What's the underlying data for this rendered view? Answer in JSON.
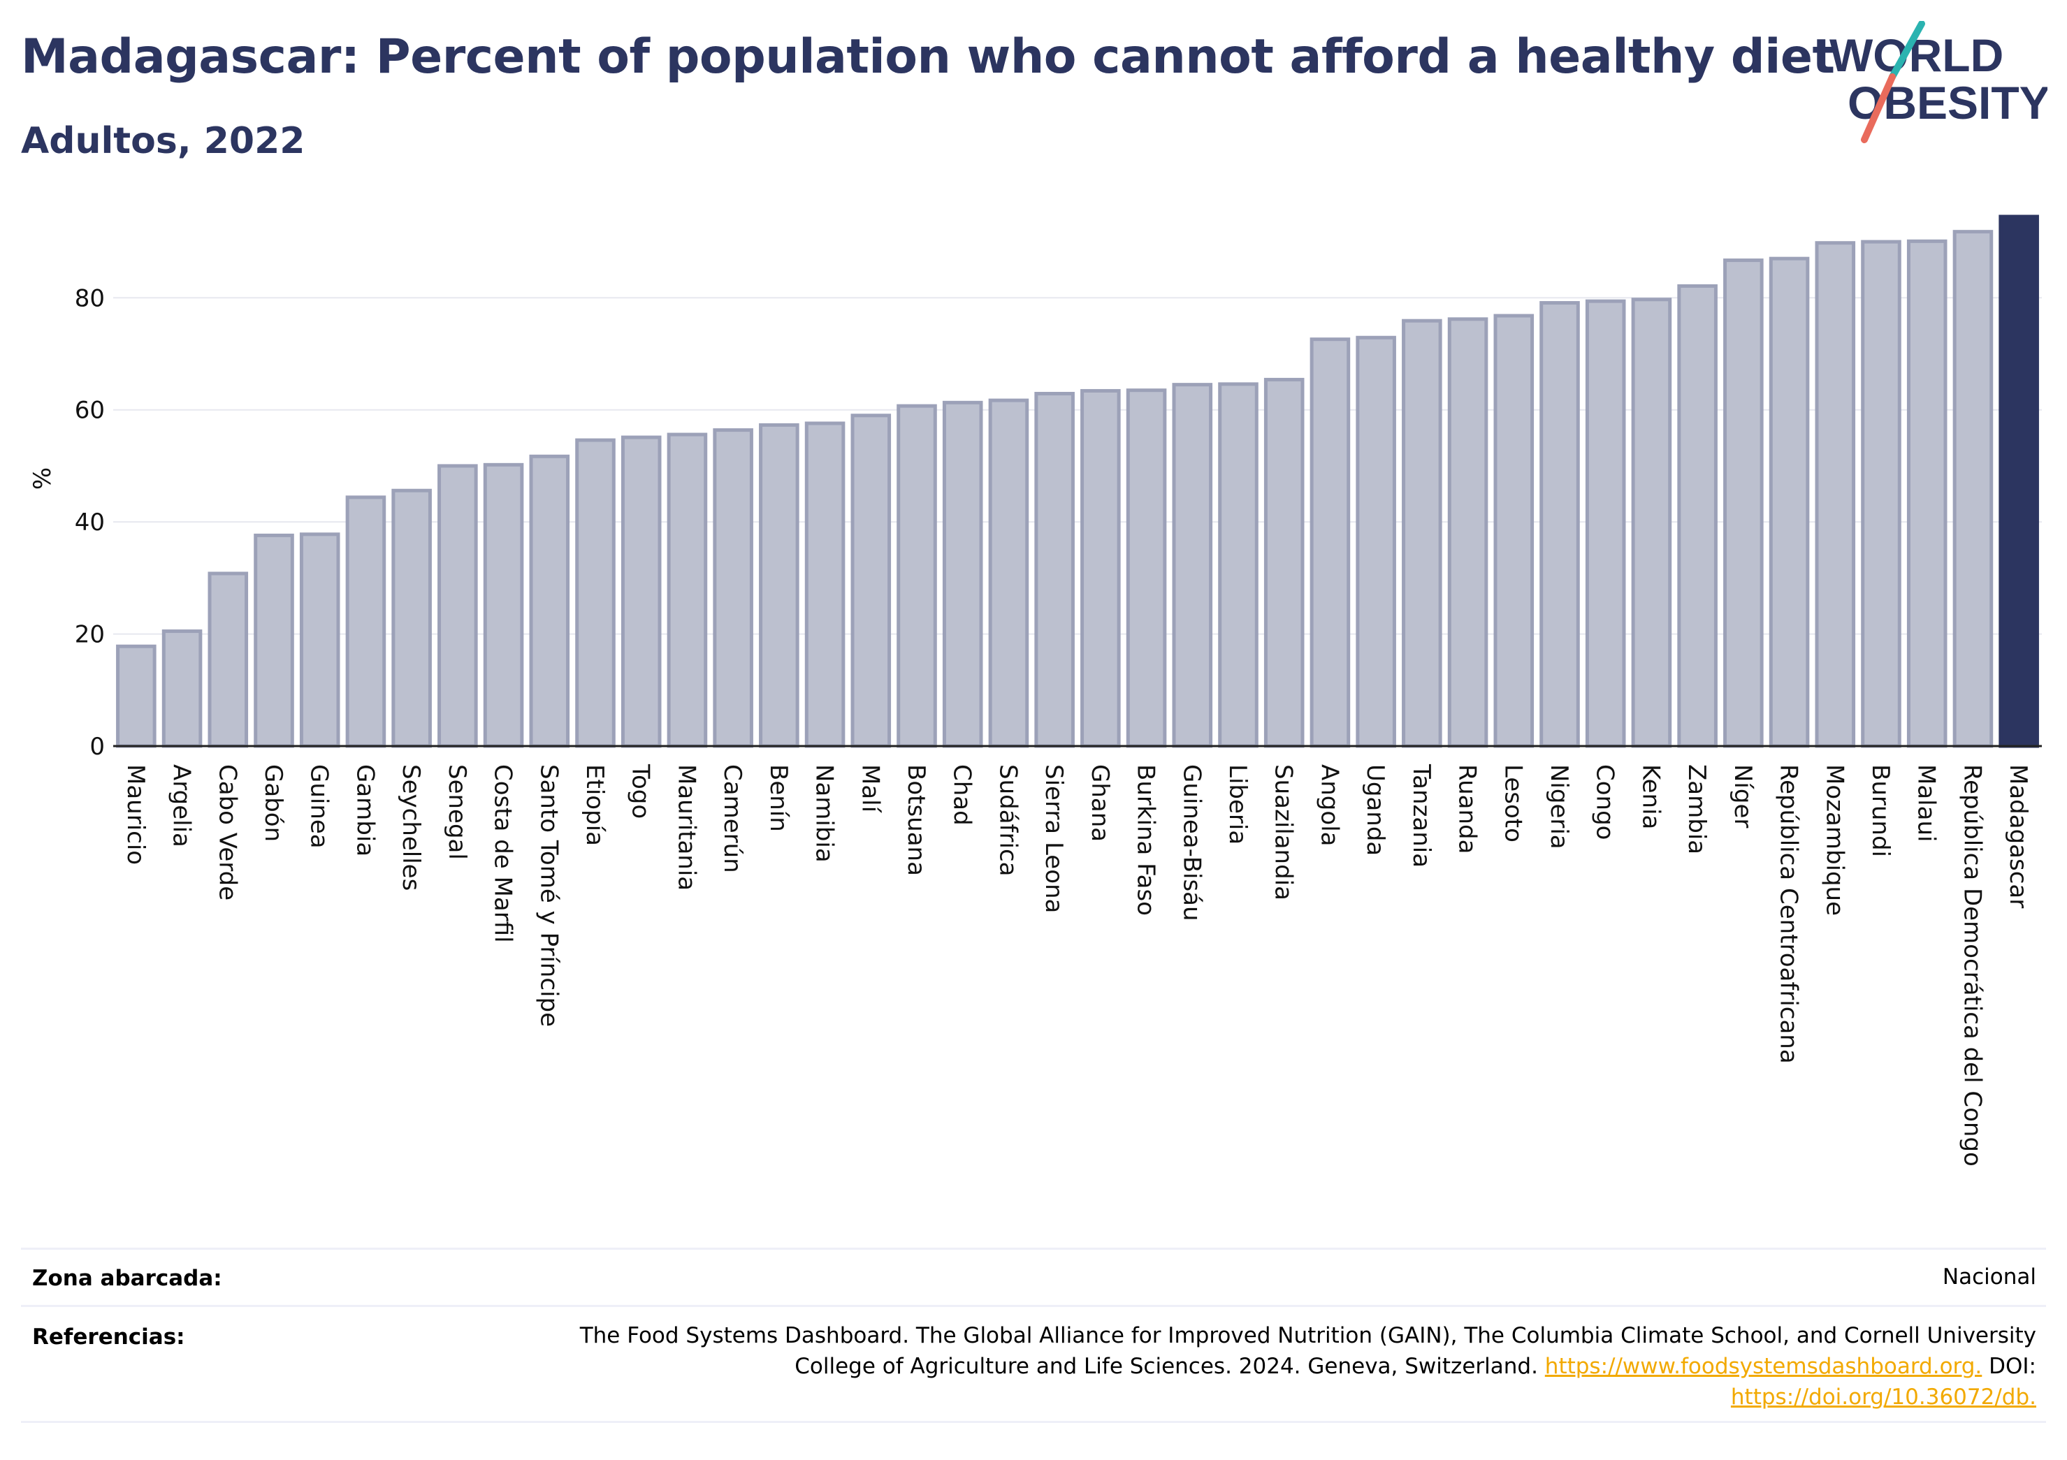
{
  "title": "Madagascar: Percent of population who cannot afford a healthy diet",
  "subtitle": "Adultos, 2022",
  "logo": {
    "line1": "WORLD",
    "line2": "OBESITY",
    "text_color": "#2c3560",
    "slash_colors": [
      "#2bb3b0",
      "#e96b5c"
    ]
  },
  "colors": {
    "bar": "#bcc0cf",
    "bar_stroke": "#9ca1b8",
    "highlight": "#2c3560",
    "grid": "#e7e8ef",
    "axis": "#222222"
  },
  "chart_data": {
    "type": "bar",
    "ylabel": "%",
    "xlabel": "",
    "ylim": [
      0,
      94.5
    ],
    "yticks": [
      0,
      20,
      40,
      60,
      80
    ],
    "grid": true,
    "highlight_category": "Madagascar",
    "categories": [
      "Mauricio",
      "Argelia",
      "Cabo Verde",
      "Gabón",
      "Guinea",
      "Gambia",
      "Seychelles",
      "Senegal",
      "Costa de Marfil",
      "Santo Tomé y Príncipe",
      "Etiopía",
      "Togo",
      "Mauritania",
      "Camerún",
      "Benín",
      "Namibia",
      "Malí",
      "Botsuana",
      "Chad",
      "Sudáfrica",
      "Sierra Leona",
      "Ghana",
      "Burkina Faso",
      "Guinea-Bisáu",
      "Liberia",
      "Suazilandia",
      "Angola",
      "Uganda",
      "Tanzania",
      "Ruanda",
      "Lesoto",
      "Nigeria",
      "Congo",
      "Kenia",
      "Zambia",
      "Níger",
      "República Centroafricana",
      "Mozambique",
      "Burundi",
      "Malaui",
      "República Democrática del Congo",
      "Madagascar"
    ],
    "values": [
      17.8,
      20.5,
      30.8,
      37.6,
      37.8,
      44.4,
      45.6,
      50.0,
      50.2,
      51.7,
      54.6,
      55.1,
      55.6,
      56.4,
      57.3,
      57.6,
      59.0,
      60.7,
      61.3,
      61.7,
      62.9,
      63.4,
      63.5,
      64.5,
      64.6,
      65.4,
      72.6,
      72.9,
      75.9,
      76.2,
      76.8,
      79.1,
      79.4,
      79.7,
      82.1,
      86.7,
      87.0,
      89.8,
      90.0,
      90.1,
      91.8,
      94.5
    ]
  },
  "footer": {
    "zona_label": "Zona abarcada:",
    "zona_value": "Nacional",
    "ref_label": "Referencias:",
    "ref_line1": "The Food Systems Dashboard. The Global Alliance for Improved Nutrition (GAIN), The Columbia Climate School, and Cornell University",
    "ref_line2_text": "College of Agriculture and Life Sciences. 2024. Geneva, Switzerland.",
    "ref_link1": "https://www.foodsystemsdashboard.org.",
    "ref_doi_label": "DOI:",
    "ref_link2": "https://doi.org/10.36072/db."
  }
}
